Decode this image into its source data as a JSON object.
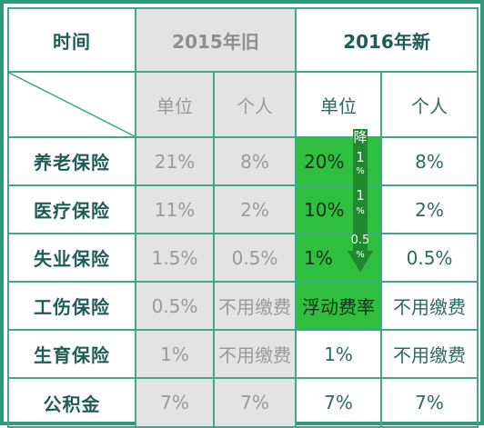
{
  "header": {
    "row_title": "时间",
    "old_title": "2015年旧",
    "new_title": "2016年新"
  },
  "sub": {
    "unit": "单位",
    "person": "个人"
  },
  "rows": [
    {
      "name": "养老保险",
      "old_unit": "21%",
      "old_person": "8%",
      "new_unit": "20%",
      "new_person": "8%"
    },
    {
      "name": "医疗保险",
      "old_unit": "11%",
      "old_person": "2%",
      "new_unit": "10%",
      "new_person": "2%"
    },
    {
      "name": "失业保险",
      "old_unit": "1.5%",
      "old_person": "0.5%",
      "new_unit": "1%",
      "new_person": "0.5%"
    },
    {
      "name": "工伤保险",
      "old_unit": "0.5%",
      "old_person": "不用缴费",
      "new_unit": "浮动费率",
      "new_person": "不用缴费"
    },
    {
      "name": "生育保险",
      "old_unit": "1%",
      "old_person": "不用缴费",
      "new_unit": "1%",
      "new_person": "不用缴费"
    },
    {
      "name": "公积金",
      "old_unit": "7%",
      "old_person": "7%",
      "new_unit": "7%",
      "new_person": "7%"
    }
  ],
  "arrow": {
    "label_top": "降",
    "d1": "1",
    "d1_unit": "%",
    "d2": "1",
    "d2_unit": "%",
    "d3": "0.5",
    "d3_unit": "%"
  },
  "colors": {
    "border": "#3fa886",
    "old_bg": "#e3e3e3",
    "highlight_green": "#2fbf3f",
    "arrow_green": "#1f8a2c",
    "title_text": "#1e5c55"
  }
}
